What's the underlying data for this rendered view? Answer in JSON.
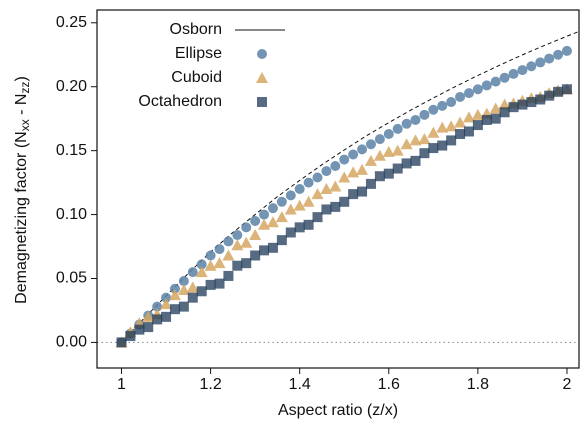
{
  "chart_data": {
    "type": "scatter",
    "xlabel": "Aspect ratio (z/x)",
    "ylabel": [
      "Demagnetizing factor (N",
      "xx",
      " - N",
      "zz",
      ")"
    ],
    "xlim": [
      0.945,
      2.027
    ],
    "ylim": [
      -0.02,
      0.26
    ],
    "xticks": [
      1,
      1.2,
      1.4,
      1.6,
      1.8,
      2
    ],
    "yticks": [
      {
        "value": 0,
        "label": "0.00"
      },
      {
        "value": 0.05,
        "label": "0.05"
      },
      {
        "value": 0.1,
        "label": "0.10"
      },
      {
        "value": 0.15,
        "label": "0.15"
      },
      {
        "value": 0.2,
        "label": "0.20"
      },
      {
        "value": 0.25,
        "label": "0.25"
      }
    ],
    "hline": 0,
    "legend": "upper left",
    "x": [
      1.0,
      1.02,
      1.04,
      1.06,
      1.08,
      1.1,
      1.12,
      1.14,
      1.16,
      1.18,
      1.2,
      1.22,
      1.24,
      1.26,
      1.28,
      1.3,
      1.32,
      1.34,
      1.36,
      1.38,
      1.4,
      1.42,
      1.44,
      1.46,
      1.48,
      1.5,
      1.52,
      1.54,
      1.56,
      1.58,
      1.6,
      1.62,
      1.64,
      1.66,
      1.68,
      1.7,
      1.72,
      1.74,
      1.76,
      1.78,
      1.8,
      1.82,
      1.84,
      1.86,
      1.88,
      1.9,
      1.92,
      1.94,
      1.96,
      1.98,
      2.0
    ],
    "series": [
      {
        "name": "Osborn",
        "style": "line",
        "color": "#111111",
        "x": [
          1.0,
          1.05,
          1.1,
          1.15,
          1.2,
          1.25,
          1.3,
          1.35,
          1.4,
          1.45,
          1.5,
          1.55,
          1.6,
          1.65,
          1.7,
          1.75,
          1.8,
          1.85,
          1.9,
          1.95,
          2.0,
          2.05
        ],
        "values": [
          0,
          0.0186,
          0.0364,
          0.054,
          0.0708,
          0.086,
          0.1,
          0.114,
          0.1267,
          0.139,
          0.1505,
          0.1617,
          0.1719,
          0.1818,
          0.1912,
          0.2002,
          0.2088,
          0.217,
          0.2249,
          0.2324,
          0.2395,
          0.2464
        ]
      },
      {
        "name": "Ellipse",
        "style": "circle",
        "color": "#5b82a6",
        "values": [
          0,
          0.007,
          0.014,
          0.021,
          0.028,
          0.035,
          0.042,
          0.048,
          0.055,
          0.061,
          0.068,
          0.073,
          0.079,
          0.084,
          0.09,
          0.095,
          0.1,
          0.105,
          0.11,
          0.115,
          0.12,
          0.125,
          0.129,
          0.134,
          0.138,
          0.143,
          0.147,
          0.151,
          0.155,
          0.159,
          0.163,
          0.167,
          0.171,
          0.174,
          0.178,
          0.182,
          0.185,
          0.188,
          0.192,
          0.195,
          0.198,
          0.201,
          0.204,
          0.207,
          0.21,
          0.213,
          0.216,
          0.219,
          0.222,
          0.225,
          0.228
        ]
      },
      {
        "name": "Cuboid",
        "style": "triangle",
        "color": "#d6a660",
        "values": [
          0,
          0.008,
          0.015,
          0.02,
          0.022,
          0.03,
          0.037,
          0.041,
          0.043,
          0.055,
          0.06,
          0.062,
          0.068,
          0.076,
          0.078,
          0.084,
          0.092,
          0.094,
          0.098,
          0.104,
          0.107,
          0.11,
          0.116,
          0.12,
          0.122,
          0.129,
          0.133,
          0.135,
          0.142,
          0.146,
          0.149,
          0.15,
          0.155,
          0.158,
          0.159,
          0.164,
          0.168,
          0.169,
          0.172,
          0.176,
          0.178,
          0.179,
          0.183,
          0.186,
          0.187,
          0.189,
          0.191,
          0.192,
          0.195,
          0.197,
          0.198
        ]
      },
      {
        "name": "Octahedron",
        "style": "square",
        "color": "#1e3a58",
        "values": [
          0,
          0.005,
          0.01,
          0.012,
          0.018,
          0.02,
          0.026,
          0.028,
          0.035,
          0.04,
          0.045,
          0.046,
          0.052,
          0.06,
          0.062,
          0.068,
          0.072,
          0.074,
          0.08,
          0.086,
          0.09,
          0.092,
          0.098,
          0.104,
          0.106,
          0.11,
          0.116,
          0.118,
          0.124,
          0.13,
          0.132,
          0.136,
          0.14,
          0.142,
          0.148,
          0.152,
          0.154,
          0.158,
          0.163,
          0.165,
          0.17,
          0.174,
          0.175,
          0.18,
          0.184,
          0.186,
          0.188,
          0.19,
          0.193,
          0.196,
          0.198
        ]
      }
    ]
  }
}
